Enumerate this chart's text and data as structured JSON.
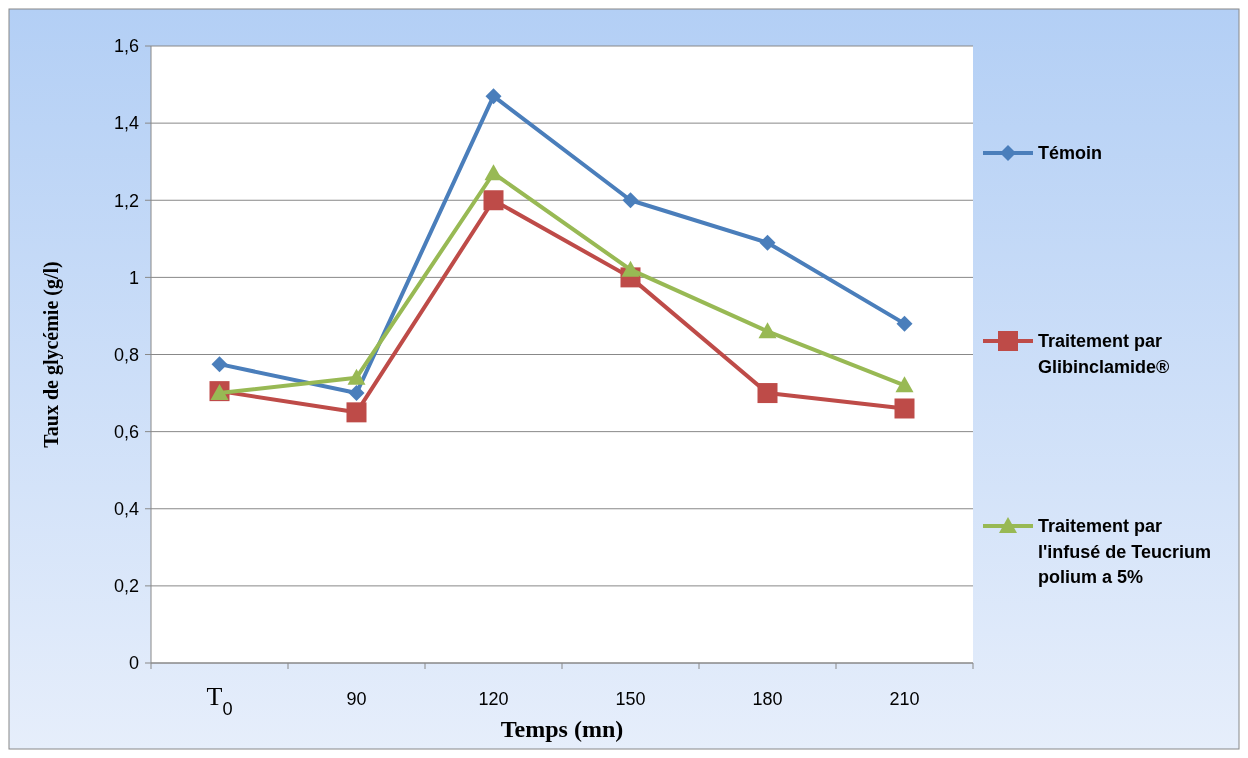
{
  "chart_data": {
    "type": "line",
    "xlabel": "Temps (mn)",
    "ylabel": "Taux de glycémie (g/l)",
    "categories": [
      "T$_{0}$",
      "90",
      "120",
      "150",
      "180",
      "210"
    ],
    "ylim": [
      0,
      1.6
    ],
    "yticks": [
      {
        "value": 0,
        "label": "0"
      },
      {
        "value": 0.2,
        "label": "0,2"
      },
      {
        "value": 0.4,
        "label": "0,4"
      },
      {
        "value": 0.6,
        "label": "0,6"
      },
      {
        "value": 0.8,
        "label": "0,8"
      },
      {
        "value": 1,
        "label": "1"
      },
      {
        "value": 1.2,
        "label": "1,2"
      },
      {
        "value": 1.4,
        "label": "1,4"
      },
      {
        "value": 1.6,
        "label": "1,6"
      }
    ],
    "grid": "y",
    "legend": "right",
    "series": [
      {
        "name": "Témoin",
        "color": "#4a7ebb",
        "marker": "diamond",
        "values": [
          0.775,
          0.7,
          1.47,
          1.2,
          1.09,
          0.88
        ]
      },
      {
        "name": "Traitement par Glibinclamide®",
        "color": "#be4b48",
        "marker": "square",
        "values": [
          0.705,
          0.65,
          1.2,
          1.0,
          0.7,
          0.66
        ]
      },
      {
        "name": "Traitement par l'infusé de Teucrium polium a 5%",
        "color": "#98b954",
        "marker": "triangle",
        "values": [
          0.7,
          0.74,
          1.27,
          1.02,
          0.86,
          0.72
        ]
      }
    ]
  }
}
